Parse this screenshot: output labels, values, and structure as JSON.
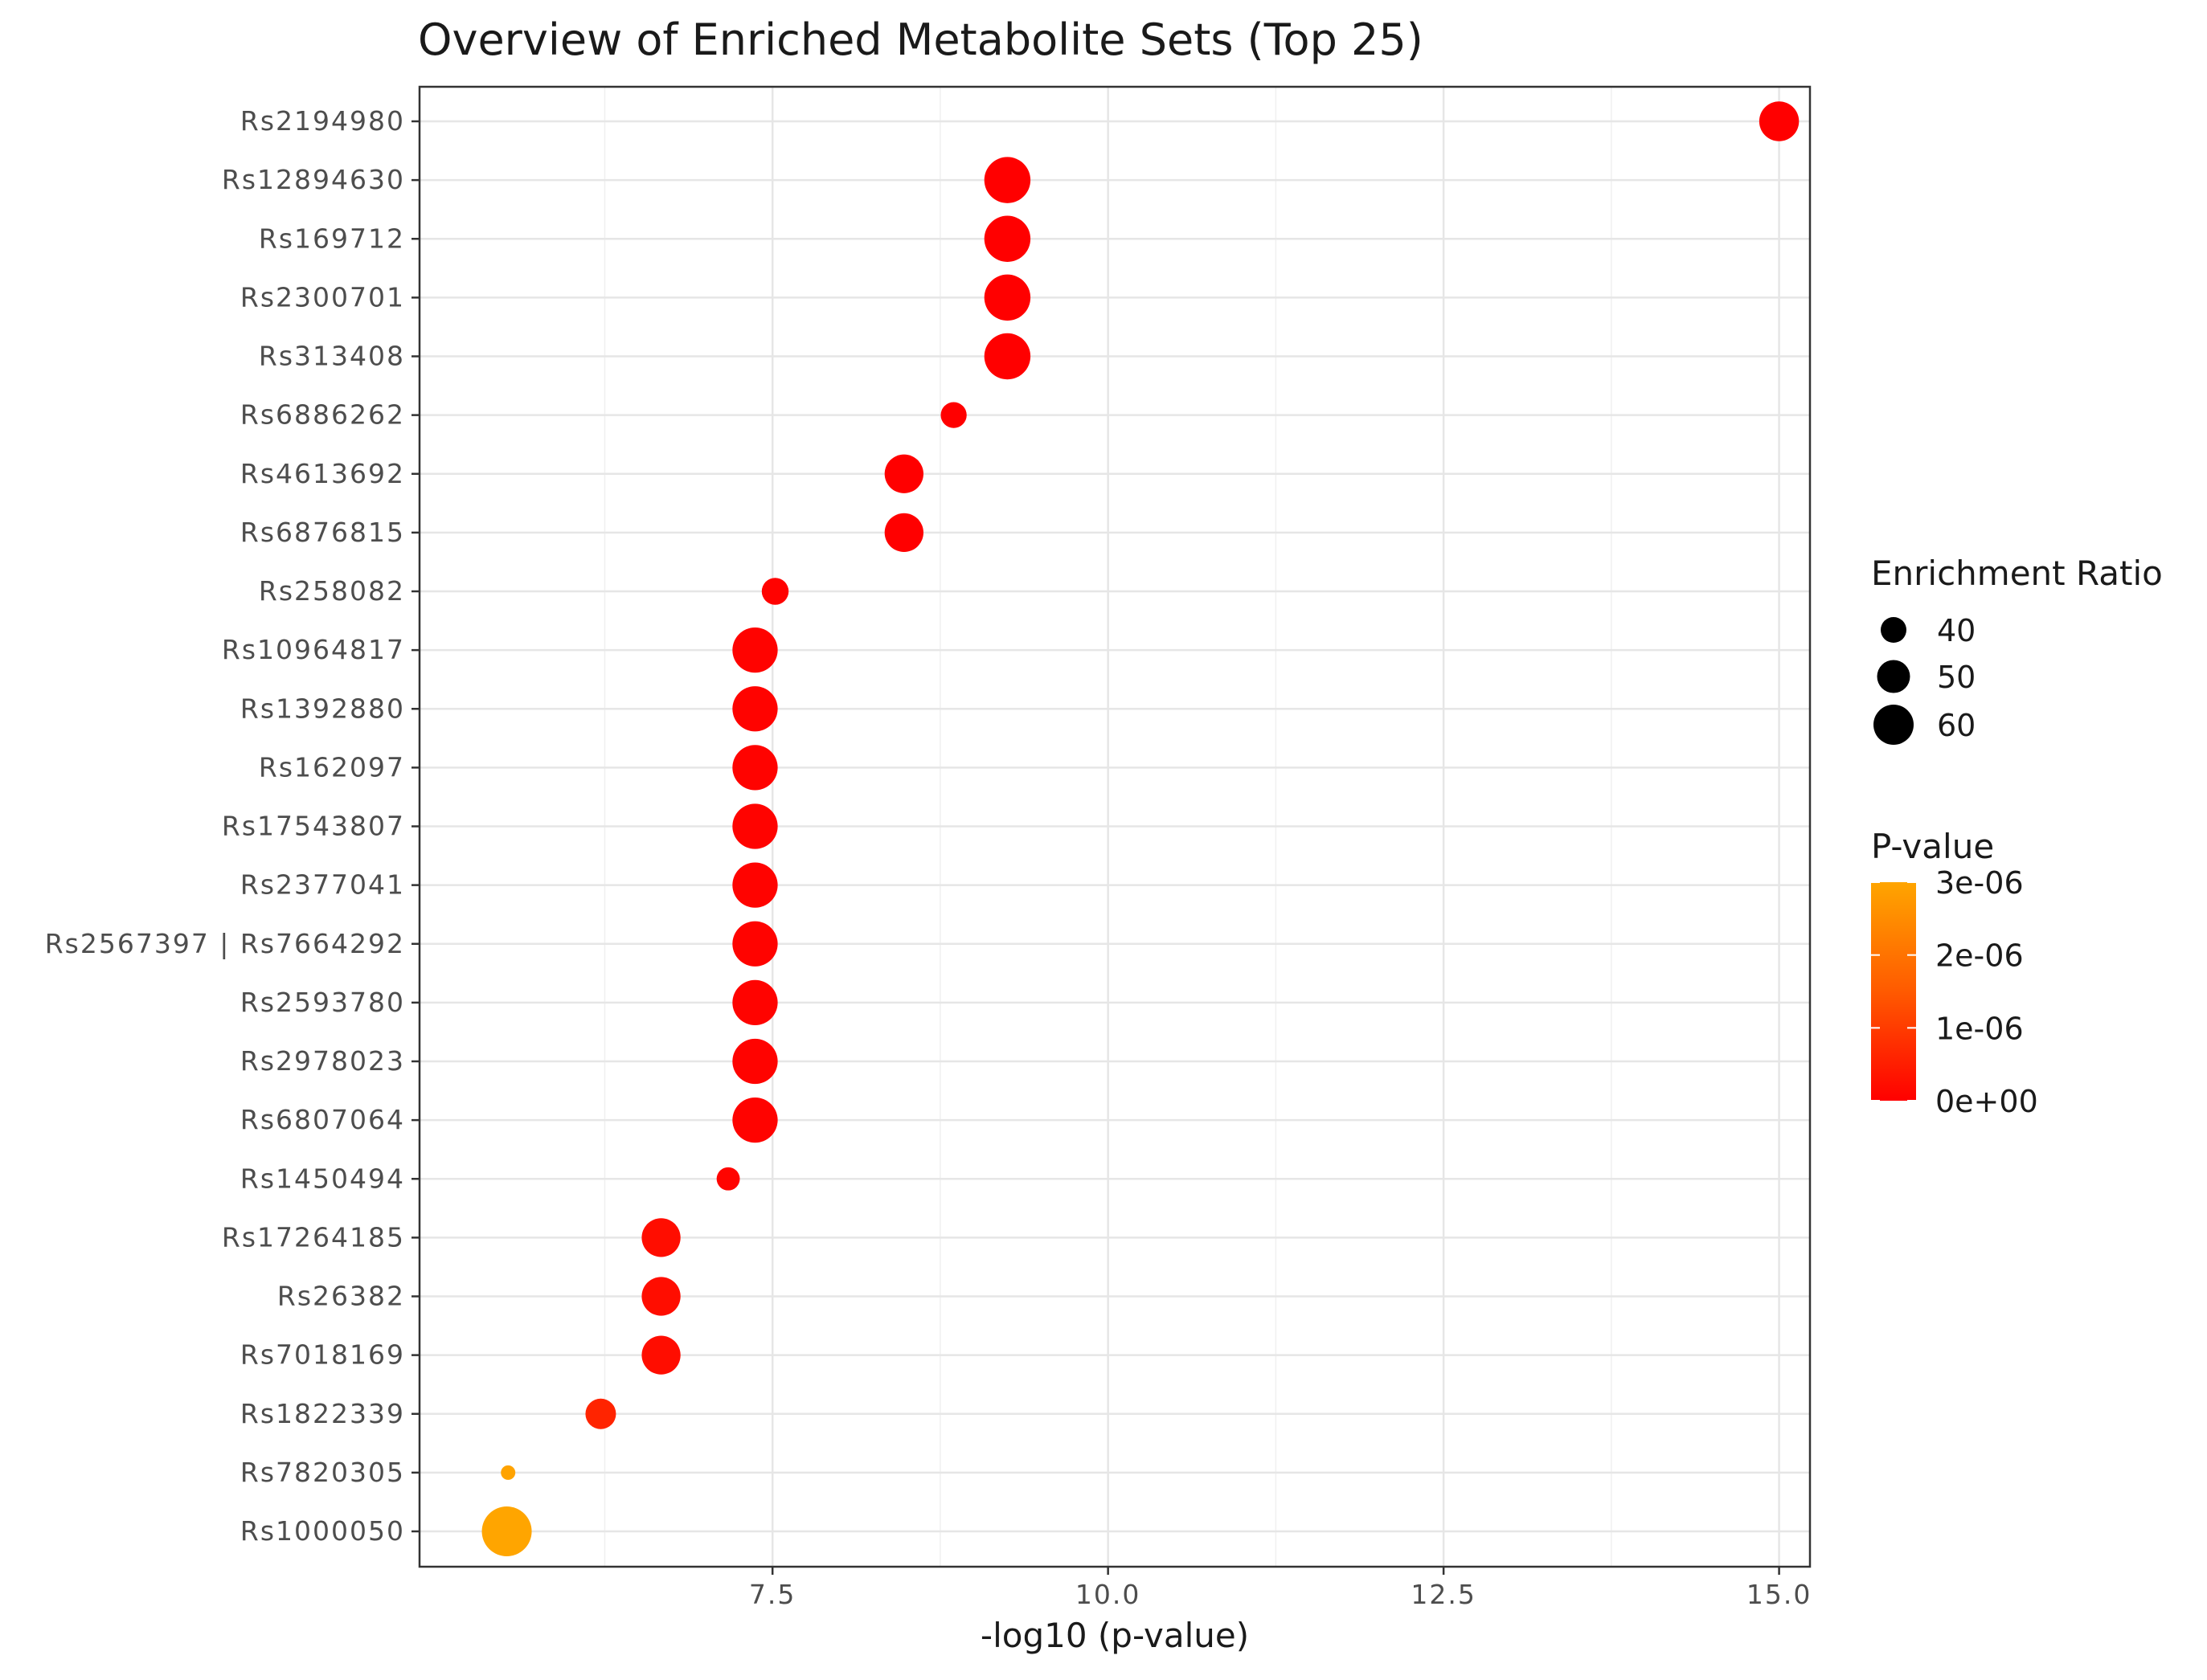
{
  "chart_data": {
    "type": "scatter",
    "title": "Overview of Enriched Metabolite Sets (Top 25)",
    "xlabel": "-log10 (p-value)",
    "ylabel": "",
    "xlim": [
      4.87,
      15.23
    ],
    "x_ticks": [
      7.5,
      10.0,
      12.5,
      15.0
    ],
    "x_tick_labels": [
      "7.5",
      "10.0",
      "12.5",
      "15.0"
    ],
    "grid": true,
    "legend_position": "right",
    "size_legend": {
      "title": "Enrichment Ratio",
      "values": [
        40,
        50,
        60
      ],
      "labels": [
        "40",
        "50",
        "60"
      ]
    },
    "color_legend": {
      "title": "P-value",
      "low_color": "#ff0000",
      "high_color": "#ffa500",
      "range": [
        0,
        3e-06
      ],
      "ticks": [
        3e-06,
        2e-06,
        1e-06,
        0
      ],
      "tick_labels": [
        "3e-06",
        "2e-06",
        "1e-06",
        "0e+00"
      ]
    },
    "points": [
      {
        "label": "Rs2194980",
        "x": 15.0,
        "ratio": 51,
        "p": 1e-15
      },
      {
        "label": "Rs12894630",
        "x": 9.25,
        "ratio": 58,
        "p": 5.6e-10
      },
      {
        "label": "Rs169712",
        "x": 9.25,
        "ratio": 58,
        "p": 5.6e-10
      },
      {
        "label": "Rs2300701",
        "x": 9.25,
        "ratio": 58,
        "p": 5.6e-10
      },
      {
        "label": "Rs313408",
        "x": 9.25,
        "ratio": 58,
        "p": 5.6e-10
      },
      {
        "label": "Rs6886262",
        "x": 8.85,
        "ratio": 36,
        "p": 1.4e-09
      },
      {
        "label": "Rs4613692",
        "x": 8.48,
        "ratio": 50,
        "p": 3.3e-09
      },
      {
        "label": "Rs6876815",
        "x": 8.48,
        "ratio": 50,
        "p": 3.3e-09
      },
      {
        "label": "Rs258082",
        "x": 7.52,
        "ratio": 37,
        "p": 3e-08
      },
      {
        "label": "Rs10964817",
        "x": 7.37,
        "ratio": 57,
        "p": 4.3e-08
      },
      {
        "label": "Rs1392880",
        "x": 7.37,
        "ratio": 57,
        "p": 4.3e-08
      },
      {
        "label": "Rs162097",
        "x": 7.37,
        "ratio": 57,
        "p": 4.3e-08
      },
      {
        "label": "Rs17543807",
        "x": 7.37,
        "ratio": 57,
        "p": 4.3e-08
      },
      {
        "label": "Rs2377041",
        "x": 7.37,
        "ratio": 57,
        "p": 4.3e-08
      },
      {
        "label": "Rs2567397 | Rs7664292",
        "x": 7.37,
        "ratio": 57,
        "p": 4.3e-08
      },
      {
        "label": "Rs2593780",
        "x": 7.37,
        "ratio": 57,
        "p": 4.3e-08
      },
      {
        "label": "Rs2978023",
        "x": 7.37,
        "ratio": 57,
        "p": 4.3e-08
      },
      {
        "label": "Rs6807064",
        "x": 7.37,
        "ratio": 57,
        "p": 4.3e-08
      },
      {
        "label": "Rs1450494",
        "x": 7.17,
        "ratio": 33,
        "p": 6.8e-08
      },
      {
        "label": "Rs17264185",
        "x": 6.67,
        "ratio": 50,
        "p": 2.1e-07
      },
      {
        "label": "Rs26382",
        "x": 6.67,
        "ratio": 50,
        "p": 2.1e-07
      },
      {
        "label": "Rs7018169",
        "x": 6.67,
        "ratio": 50,
        "p": 2.1e-07
      },
      {
        "label": "Rs1822339",
        "x": 6.22,
        "ratio": 41,
        "p": 6e-07
      },
      {
        "label": "Rs7820305",
        "x": 5.53,
        "ratio": 20,
        "p": 2.95e-06
      },
      {
        "label": "Rs1000050",
        "x": 5.52,
        "ratio": 62,
        "p": 3e-06
      }
    ]
  }
}
